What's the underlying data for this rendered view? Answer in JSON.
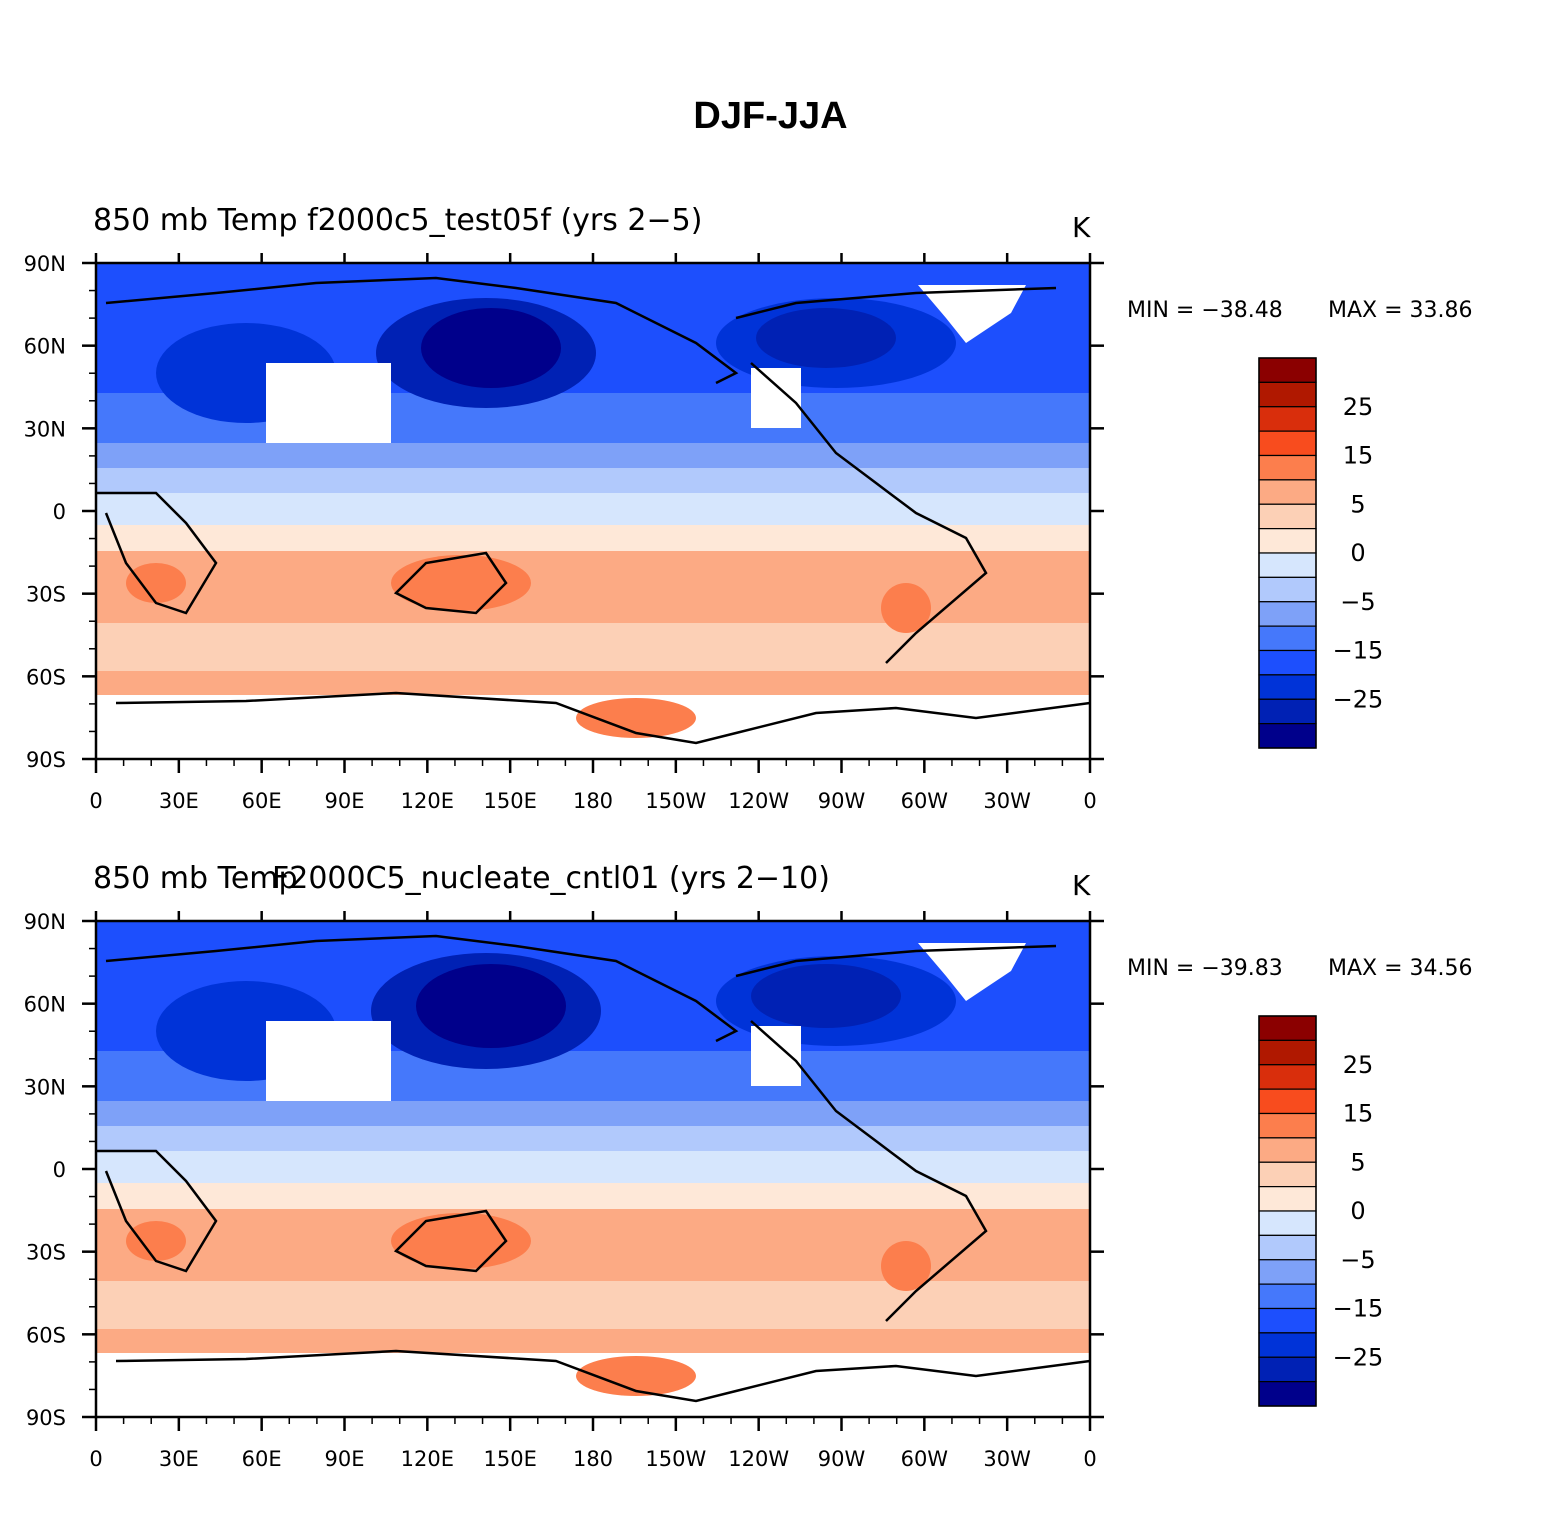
{
  "title": "DJF-JJA",
  "colorbar": {
    "colors": [
      "#00008b",
      "#0021b4",
      "#0033d8",
      "#1d4ffd",
      "#4578fb",
      "#7ea1f8",
      "#b1c9fc",
      "#d6e6fd",
      "#fee8d8",
      "#fcd0b6",
      "#fcaa84",
      "#fc7e4d",
      "#f84c1e",
      "#d92e0c",
      "#b01800",
      "#8b0000"
    ],
    "labels": [
      "25",
      "15",
      "5",
      "0",
      "−5",
      "−15",
      "−25"
    ]
  },
  "axes": {
    "x_ticks": [
      "0",
      "30E",
      "60E",
      "90E",
      "120E",
      "150E",
      "180",
      "150W",
      "120W",
      "90W",
      "60W",
      "30W",
      "0"
    ],
    "y_ticks": [
      "90N",
      "60N",
      "30N",
      "0",
      "30S",
      "60S",
      "90S"
    ]
  },
  "panels": [
    {
      "title": "850 mb Temp  f2000c5_test05f (yrs 2−5)",
      "units": "K",
      "min_label": "MIN = −38.48",
      "max_label": "MAX =   33.86"
    },
    {
      "title": "850 mb Temp",
      "title_overlap": "F2000C5_nucleate_cntl01 (yrs 2−10)",
      "units": "K",
      "min_label": "MIN = −39.83",
      "max_label": "MAX =   34.56"
    }
  ]
}
